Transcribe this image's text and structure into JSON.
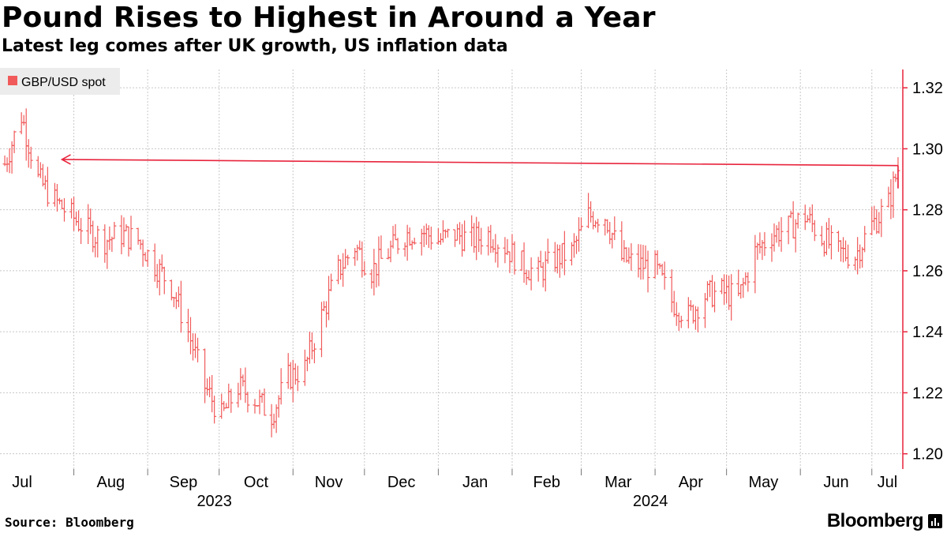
{
  "header": {
    "title": "Pound Rises to Highest in Around a Year",
    "subtitle": "Latest leg comes after UK growth, US inflation data"
  },
  "footer": {
    "source": "Source: Bloomberg",
    "brand": "Bloomberg"
  },
  "colors": {
    "series": "#f15a5a",
    "annotation": "#e8243c",
    "legend_bg": "#ececec",
    "grid": "#c8c8c8"
  },
  "chart_data": {
    "type": "line",
    "style": "ohlc-bars",
    "title": "Pound Rises to Highest in Around a Year",
    "subtitle": "Latest leg comes after UK growth, US inflation data",
    "legend": {
      "placement": "top-left",
      "entries": [
        "GBP/USD spot"
      ]
    },
    "y_axis": {
      "side": "right",
      "ticks": [
        "1.32",
        "1.30",
        "1.28",
        "1.26",
        "1.24",
        "1.22",
        "1.20"
      ],
      "range": [
        1.195,
        1.326
      ]
    },
    "x_axis": {
      "ticks": [
        "Jul",
        "Aug",
        "Sep",
        "Oct",
        "Nov",
        "Dec",
        "Jan",
        "Feb",
        "Mar",
        "Apr",
        "May",
        "Jun",
        "Jul"
      ],
      "year_labels": [
        "2023",
        "2024"
      ],
      "range": [
        "2023-07-01",
        "2024-07-14"
      ]
    },
    "grid": true,
    "annotation": {
      "type": "arrow",
      "from": [
        "2024-07-12",
        1.2945
      ],
      "to": [
        "2023-07-27",
        1.2965
      ],
      "text": ""
    },
    "series": [
      {
        "name": "GBP/USD spot",
        "points": [
          [
            "2023-07-03",
            1.295
          ],
          [
            "2023-07-10",
            1.311
          ],
          [
            "2023-07-17",
            1.29
          ],
          [
            "2023-07-24",
            1.283
          ],
          [
            "2023-07-31",
            1.278
          ],
          [
            "2023-08-07",
            1.273
          ],
          [
            "2023-08-14",
            1.27
          ],
          [
            "2023-08-21",
            1.272
          ],
          [
            "2023-08-28",
            1.27
          ],
          [
            "2023-09-04",
            1.262
          ],
          [
            "2023-09-11",
            1.255
          ],
          [
            "2023-09-18",
            1.24
          ],
          [
            "2023-09-25",
            1.222
          ],
          [
            "2023-10-02",
            1.212
          ],
          [
            "2023-10-09",
            1.222
          ],
          [
            "2023-10-16",
            1.218
          ],
          [
            "2023-10-23",
            1.213
          ],
          [
            "2023-10-30",
            1.225
          ],
          [
            "2023-11-06",
            1.228
          ],
          [
            "2023-11-13",
            1.245
          ],
          [
            "2023-11-20",
            1.26
          ],
          [
            "2023-11-27",
            1.268
          ],
          [
            "2023-12-04",
            1.26
          ],
          [
            "2023-12-11",
            1.266
          ],
          [
            "2023-12-18",
            1.272
          ],
          [
            "2023-12-25",
            1.273
          ],
          [
            "2024-01-01",
            1.27
          ],
          [
            "2024-01-08",
            1.272
          ],
          [
            "2024-01-15",
            1.27
          ],
          [
            "2024-01-22",
            1.272
          ],
          [
            "2024-01-29",
            1.268
          ],
          [
            "2024-02-05",
            1.262
          ],
          [
            "2024-02-12",
            1.259
          ],
          [
            "2024-02-19",
            1.264
          ],
          [
            "2024-02-26",
            1.266
          ],
          [
            "2024-03-04",
            1.278
          ],
          [
            "2024-03-11",
            1.278
          ],
          [
            "2024-03-18",
            1.264
          ],
          [
            "2024-03-25",
            1.262
          ],
          [
            "2024-04-01",
            1.261
          ],
          [
            "2024-04-08",
            1.25
          ],
          [
            "2024-04-15",
            1.245
          ],
          [
            "2024-04-22",
            1.252
          ],
          [
            "2024-04-29",
            1.253
          ],
          [
            "2024-05-06",
            1.251
          ],
          [
            "2024-05-13",
            1.266
          ],
          [
            "2024-05-20",
            1.272
          ],
          [
            "2024-05-27",
            1.274
          ],
          [
            "2024-06-03",
            1.278
          ],
          [
            "2024-06-10",
            1.271
          ],
          [
            "2024-06-17",
            1.266
          ],
          [
            "2024-06-24",
            1.265
          ],
          [
            "2024-07-01",
            1.275
          ],
          [
            "2024-07-08",
            1.282
          ],
          [
            "2024-07-12",
            1.2935
          ]
        ]
      }
    ]
  }
}
